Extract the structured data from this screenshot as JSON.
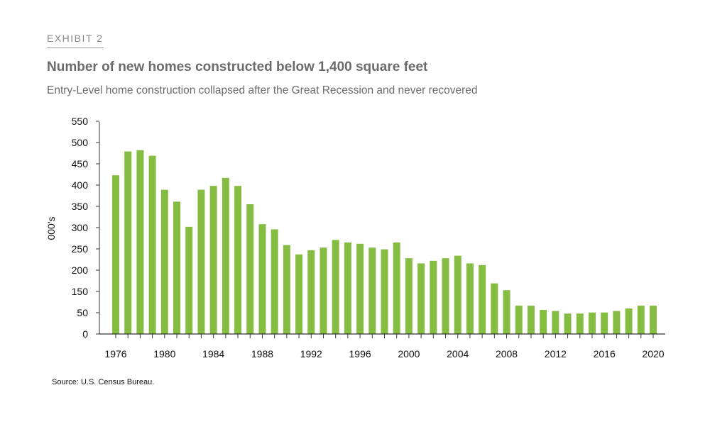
{
  "header": {
    "exhibit": "EXHIBIT 2",
    "title": "Number of new homes constructed below 1,400 square feet",
    "subtitle": "Entry-Level home construction collapsed after the Great Recession and never recovered"
  },
  "source": "Source: U.S. Census Bureau.",
  "chart_data": {
    "type": "bar",
    "title": "Number of new homes constructed below 1,400 square feet",
    "xlabel": "",
    "ylabel": "000's",
    "y_tick_labels": [
      "0",
      "50",
      "150",
      "200",
      "250",
      "300",
      "350",
      "400",
      "450",
      "500",
      "550"
    ],
    "x_tick_labels": [
      "1976",
      "1980",
      "1984",
      "1988",
      "1992",
      "1996",
      "2000",
      "2004",
      "2008",
      "2012",
      "2016",
      "2020"
    ],
    "ylim": [
      0,
      550
    ],
    "grid": false,
    "bar_color": "#84bd41",
    "categories": [
      1976,
      1977,
      1978,
      1979,
      1980,
      1981,
      1982,
      1983,
      1984,
      1985,
      1986,
      1987,
      1988,
      1989,
      1990,
      1991,
      1992,
      1993,
      1994,
      1995,
      1996,
      1997,
      1998,
      1999,
      2000,
      2001,
      2002,
      2003,
      2004,
      2005,
      2006,
      2007,
      2008,
      2009,
      2010,
      2011,
      2012,
      2013,
      2014,
      2015,
      2016,
      2017,
      2018,
      2019,
      2020
    ],
    "values": [
      423,
      479,
      482,
      469,
      389,
      361,
      302,
      389,
      398,
      417,
      398,
      355,
      308,
      296,
      259,
      237,
      247,
      253,
      271,
      265,
      262,
      253,
      249,
      265,
      228,
      216,
      222,
      228,
      234,
      216,
      212,
      169,
      153,
      83,
      83,
      63,
      58,
      48,
      48,
      51,
      51,
      58,
      70,
      83,
      83
    ]
  }
}
